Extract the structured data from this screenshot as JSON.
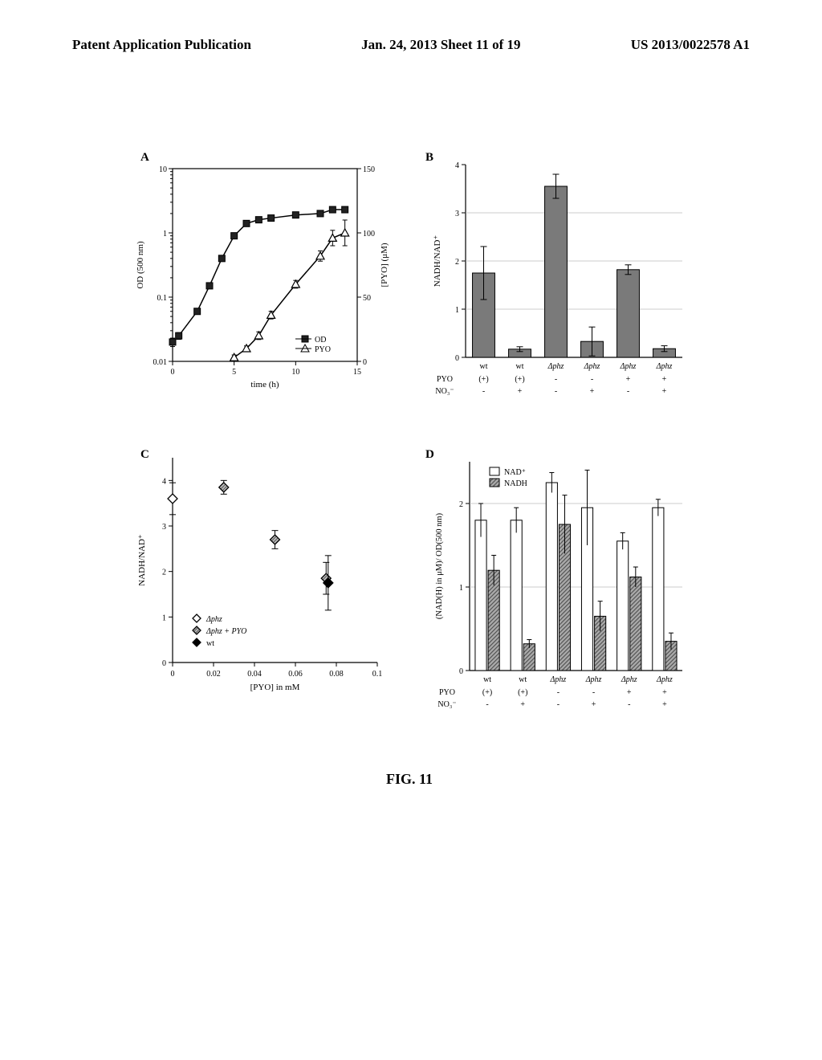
{
  "header": {
    "left": "Patent Application Publication",
    "center": "Jan. 24, 2013  Sheet 11 of 19",
    "right": "US 2013/0022578 A1"
  },
  "figcaption": "FIG. 11",
  "panelA": {
    "label": "A",
    "xaxis_label": "time (h)",
    "yaxis_left_label": "OD (500 nm)",
    "yaxis_right_label": "[PYO] (μM)",
    "xticks": [
      0,
      5,
      10,
      15
    ],
    "yticks_left_log": [
      0.01,
      0.1,
      1,
      10
    ],
    "yticks_right": [
      0,
      50,
      100,
      150
    ],
    "colors": {
      "axis": "#000000",
      "od_marker": "#222222",
      "pyo_marker": "#ffffff",
      "pyo_edge": "#000000"
    },
    "legend": [
      {
        "marker": "filled-square",
        "label": "OD"
      },
      {
        "marker": "open-triangle",
        "label": "PYO"
      }
    ],
    "series_od": {
      "x": [
        0,
        0.5,
        2,
        3,
        4,
        5,
        6,
        7,
        8,
        10,
        12,
        13,
        14
      ],
      "y": [
        0.02,
        0.025,
        0.06,
        0.15,
        0.4,
        0.9,
        1.4,
        1.6,
        1.7,
        1.9,
        2.0,
        2.3,
        2.3
      ],
      "err": [
        0.003,
        0.003,
        0.005,
        0.01,
        0.03,
        0.05,
        0.06,
        0.05,
        0.05,
        0.05,
        0.05,
        0.05,
        0.05
      ]
    },
    "series_pyo": {
      "x": [
        5,
        6,
        7,
        8,
        10,
        12,
        13,
        14
      ],
      "y": [
        3,
        10,
        20,
        36,
        60,
        82,
        96,
        100
      ],
      "err": [
        2,
        2,
        3,
        3,
        3,
        4,
        6,
        10
      ]
    }
  },
  "panelB": {
    "label": "B",
    "yaxis_label": "NADH/NAD⁺",
    "yticks": [
      0,
      1,
      2,
      3,
      4
    ],
    "grid_y": [
      1,
      2,
      3
    ],
    "bar_color": "#7a7a7a",
    "bg": "#ffffff",
    "bars": [
      {
        "label_top": "wt",
        "label_pyo": "(+)",
        "label_no3": "-",
        "val": 1.75,
        "err": 0.55
      },
      {
        "label_top": "wt",
        "label_pyo": "(+)",
        "label_no3": "+",
        "val": 0.17,
        "err": 0.05
      },
      {
        "label_top": "Δphz",
        "label_pyo": "-",
        "label_no3": "-",
        "val": 3.55,
        "err": 0.25
      },
      {
        "label_top": "Δphz",
        "label_pyo": "-",
        "label_no3": "+",
        "val": 0.33,
        "err": 0.3
      },
      {
        "label_top": "Δphz",
        "label_pyo": "+",
        "label_no3": "-",
        "val": 1.82,
        "err": 0.1
      },
      {
        "label_top": "Δphz",
        "label_pyo": "+",
        "label_no3": "+",
        "val": 0.18,
        "err": 0.06
      }
    ],
    "row_labels": [
      "PYO",
      "NO₃⁻"
    ]
  },
  "panelC": {
    "label": "C",
    "xaxis_label": "[PYO] in mM",
    "yaxis_label": "NADH/NAD⁺",
    "xticks": [
      0,
      0.02,
      0.04,
      0.06,
      0.08,
      0.1
    ],
    "yticks": [
      0,
      1,
      2,
      3,
      4
    ],
    "colors": {
      "open_diamond": "#ffffff",
      "hatched_diamond": "#7a7a7a",
      "filled_diamond": "#000000",
      "edge": "#000000"
    },
    "legend": [
      {
        "marker": "open-diamond",
        "label": "Δphz"
      },
      {
        "marker": "hatched-diamond",
        "label": "Δphz + PYO"
      },
      {
        "marker": "filled-diamond",
        "label": "wt"
      }
    ],
    "points": [
      {
        "marker": "open-diamond",
        "x": 0.0,
        "y": 3.6,
        "err": 0.35
      },
      {
        "marker": "hatched-diamond",
        "x": 0.025,
        "y": 3.85,
        "err": 0.15
      },
      {
        "marker": "hatched-diamond",
        "x": 0.05,
        "y": 2.7,
        "err": 0.2
      },
      {
        "marker": "hatched-diamond",
        "x": 0.075,
        "y": 1.85,
        "err": 0.35
      },
      {
        "marker": "filled-diamond",
        "x": 0.076,
        "y": 1.75,
        "err": 0.6
      }
    ]
  },
  "panelD": {
    "label": "D",
    "yaxis_label": "(NAD(H) in μM)/ OD(500 nm)",
    "yticks": [
      0,
      1,
      2
    ],
    "grid_y": [
      1,
      2
    ],
    "colors": {
      "nad": "#ffffff",
      "nadh": "#7a7a7a",
      "edge": "#000"
    },
    "legend": [
      {
        "fill": "nad",
        "label": "NAD⁺"
      },
      {
        "fill": "nadh",
        "label": "NADH"
      }
    ],
    "groups": [
      {
        "label_top": "wt",
        "label_pyo": "(+)",
        "label_no3": "-",
        "nad": 1.8,
        "nad_err": 0.2,
        "nadh": 1.2,
        "nadh_err": 0.18
      },
      {
        "label_top": "wt",
        "label_pyo": "(+)",
        "label_no3": "+",
        "nad": 1.8,
        "nad_err": 0.15,
        "nadh": 0.32,
        "nadh_err": 0.05
      },
      {
        "label_top": "Δphz",
        "label_pyo": "-",
        "label_no3": "-",
        "nad": 2.25,
        "nad_err": 0.12,
        "nadh": 1.75,
        "nadh_err": 0.35
      },
      {
        "label_top": "Δphz",
        "label_pyo": "-",
        "label_no3": "+",
        "nad": 1.95,
        "nad_err": 0.45,
        "nadh": 0.65,
        "nadh_err": 0.18
      },
      {
        "label_top": "Δphz",
        "label_pyo": "+",
        "label_no3": "-",
        "nad": 1.55,
        "nad_err": 0.1,
        "nadh": 1.12,
        "nadh_err": 0.12
      },
      {
        "label_top": "Δphz",
        "label_pyo": "+",
        "label_no3": "+",
        "nad": 1.95,
        "nad_err": 0.1,
        "nadh": 0.35,
        "nadh_err": 0.1
      }
    ],
    "row_labels": [
      "PYO",
      "NO₃⁻"
    ]
  }
}
